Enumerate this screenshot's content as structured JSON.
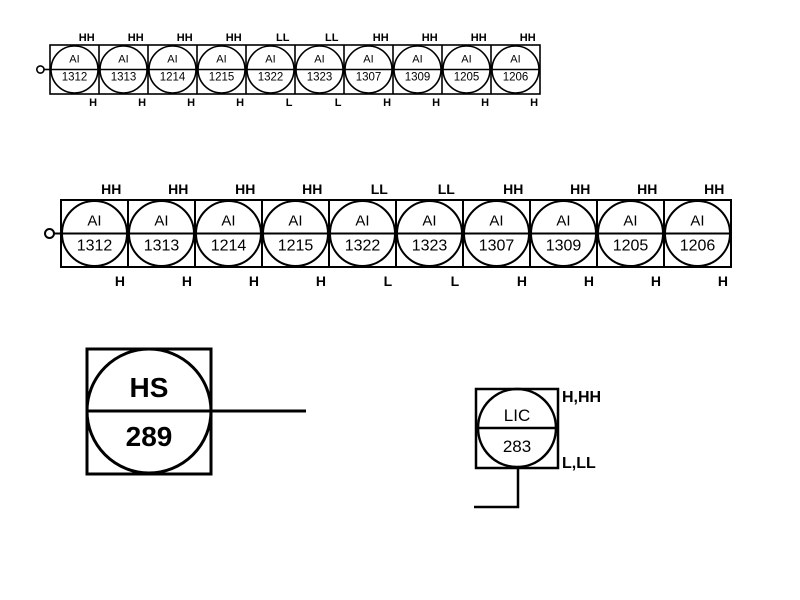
{
  "instrument_rows": [
    {
      "instruments": [
        {
          "func": "AI",
          "tag": "1312",
          "high": "HH",
          "low": "H"
        },
        {
          "func": "AI",
          "tag": "1313",
          "high": "HH",
          "low": "H"
        },
        {
          "func": "AI",
          "tag": "1214",
          "high": "HH",
          "low": "H"
        },
        {
          "func": "AI",
          "tag": "1215",
          "high": "HH",
          "low": "H"
        },
        {
          "func": "AI",
          "tag": "1322",
          "high": "LL",
          "low": "L"
        },
        {
          "func": "AI",
          "tag": "1323",
          "high": "LL",
          "low": "L"
        },
        {
          "func": "AI",
          "tag": "1307",
          "high": "HH",
          "low": "H"
        },
        {
          "func": "AI",
          "tag": "1309",
          "high": "HH",
          "low": "H"
        },
        {
          "func": "AI",
          "tag": "1205",
          "high": "HH",
          "low": "H"
        },
        {
          "func": "AI",
          "tag": "1206",
          "high": "HH",
          "low": "H"
        }
      ]
    },
    {
      "instruments": [
        {
          "func": "AI",
          "tag": "1312",
          "high": "HH",
          "low": "H"
        },
        {
          "func": "AI",
          "tag": "1313",
          "high": "HH",
          "low": "H"
        },
        {
          "func": "AI",
          "tag": "1214",
          "high": "HH",
          "low": "H"
        },
        {
          "func": "AI",
          "tag": "1215",
          "high": "HH",
          "low": "H"
        },
        {
          "func": "AI",
          "tag": "1322",
          "high": "LL",
          "low": "L"
        },
        {
          "func": "AI",
          "tag": "1323",
          "high": "LL",
          "low": "L"
        },
        {
          "func": "AI",
          "tag": "1307",
          "high": "HH",
          "low": "H"
        },
        {
          "func": "AI",
          "tag": "1309",
          "high": "HH",
          "low": "H"
        },
        {
          "func": "AI",
          "tag": "1205",
          "high": "HH",
          "low": "H"
        },
        {
          "func": "AI",
          "tag": "1206",
          "high": "HH",
          "low": "H"
        }
      ]
    }
  ],
  "hand_switch": {
    "func": "HS",
    "tag": "289"
  },
  "level_controller": {
    "func": "LIC",
    "tag": "283",
    "alarm_high": "H,HH",
    "alarm_low": "L,LL"
  }
}
